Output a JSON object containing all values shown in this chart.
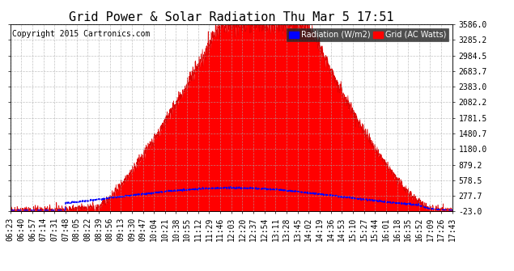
{
  "title": "Grid Power & Solar Radiation Thu Mar 5 17:51",
  "copyright": "Copyright 2015 Cartronics.com",
  "ylabel_right_ticks": [
    -23.0,
    277.7,
    578.5,
    879.2,
    1180.0,
    1480.7,
    1781.5,
    2082.2,
    2383.0,
    2683.7,
    2984.5,
    3285.2,
    3586.0
  ],
  "ymin": -23.0,
  "ymax": 3586.0,
  "xtick_labels": [
    "06:23",
    "06:40",
    "06:57",
    "07:14",
    "07:31",
    "07:48",
    "08:05",
    "08:22",
    "08:39",
    "08:56",
    "09:13",
    "09:30",
    "09:47",
    "10:04",
    "10:21",
    "10:38",
    "10:55",
    "11:12",
    "11:29",
    "11:46",
    "12:03",
    "12:20",
    "12:37",
    "12:54",
    "13:11",
    "13:28",
    "13:45",
    "14:02",
    "14:19",
    "14:36",
    "14:53",
    "15:10",
    "15:27",
    "15:44",
    "16:01",
    "16:18",
    "16:35",
    "16:52",
    "17:09",
    "17:26",
    "17:43"
  ],
  "bg_color": "#ffffff",
  "plot_bg_color": "#ffffff",
  "grid_color": "#aaaaaa",
  "solar_fill_color": "#ff0000",
  "solar_line_color": "#dd0000",
  "radiation_line_color": "#0000ff",
  "legend_radiation_bg": "#0000ff",
  "legend_grid_bg": "#ff0000",
  "title_fontsize": 11,
  "tick_fontsize": 7,
  "copyright_fontsize": 7
}
